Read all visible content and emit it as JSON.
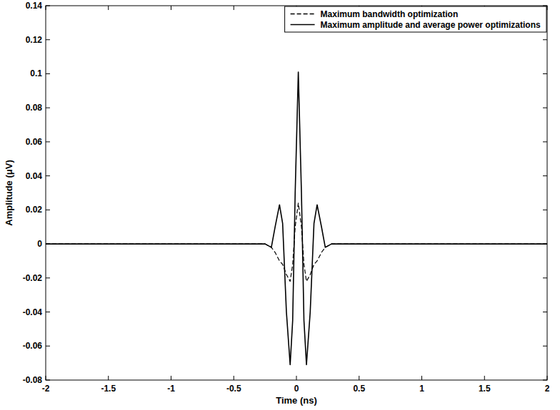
{
  "chart_data": {
    "type": "line",
    "x_label": "Time (ns)",
    "y_label": "Amplitude (μV)",
    "x": [
      -2,
      -0.25,
      -0.2,
      -0.17,
      -0.135,
      -0.11,
      -0.08,
      -0.05,
      -0.03,
      -0.01,
      0.015,
      0.04,
      0.06,
      0.08,
      0.11,
      0.14,
      0.165,
      0.2,
      0.23,
      0.28,
      2
    ],
    "series": [
      {
        "name": "Maximum bandwidth optimization",
        "color": "#000000",
        "line_style": "dashed",
        "values": [
          0,
          0,
          -0.002,
          -0.005,
          -0.01,
          -0.012,
          -0.018,
          -0.022,
          -0.012,
          0.01,
          0.024,
          0.01,
          -0.012,
          -0.022,
          -0.018,
          -0.012,
          -0.01,
          -0.005,
          -0.002,
          0,
          0
        ]
      },
      {
        "name": "Maximum amplitude and average power optimizations",
        "color": "#000000",
        "line_style": "solid",
        "values": [
          0,
          0,
          -0.002,
          0.01,
          0.023,
          0.012,
          -0.04,
          -0.071,
          -0.045,
          0.03,
          0.101,
          0.03,
          -0.045,
          -0.071,
          -0.04,
          0.012,
          0.023,
          0.01,
          -0.002,
          0,
          0
        ]
      }
    ],
    "xlim": [
      -2,
      2
    ],
    "xticks": [
      -2,
      -1.5,
      -1,
      -0.5,
      0,
      0.5,
      1,
      1.5,
      2
    ],
    "ylim": [
      -0.08,
      0.14
    ],
    "yticks": [
      -0.08,
      -0.06,
      -0.04,
      -0.02,
      0,
      0.02,
      0.04,
      0.06,
      0.08,
      0.1,
      0.12,
      0.14
    ],
    "grid": false,
    "legend": "top-right"
  }
}
